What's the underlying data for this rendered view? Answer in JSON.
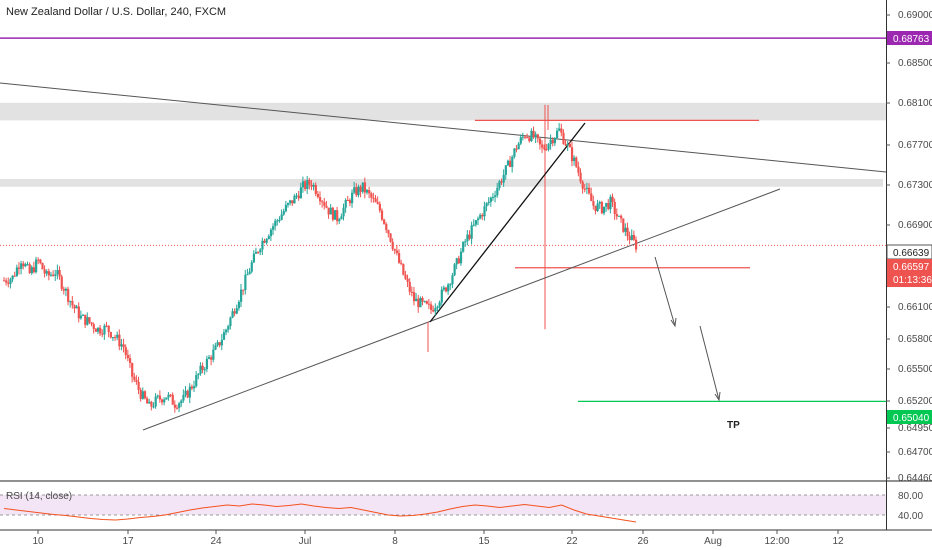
{
  "chart_data": {
    "type": "candlestick",
    "title": "New Zealand Dollar / U.S. Dollar, 240, FXCM",
    "y_axis": {
      "ticks": [
        "0.69000",
        "0.68500",
        "0.68100",
        "0.67700",
        "0.67300",
        "0.66900",
        "0.66100",
        "0.65800",
        "0.65500",
        "0.65200",
        "0.64950",
        "0.64700",
        "0.64460"
      ],
      "ylim": [
        0.6446,
        0.6905
      ]
    },
    "x_axis": {
      "ticks": [
        "10",
        "17",
        "24",
        "Jul",
        "8",
        "15",
        "22",
        "26",
        "Aug",
        "12:00",
        "12"
      ]
    },
    "price_labels": {
      "resistance_line": "0.68763",
      "last_price": "0.66639",
      "current_price": "0.66597",
      "countdown": "01:13:36",
      "tp_price": "0.65040"
    },
    "annotations": {
      "tp": "TP"
    },
    "rsi": {
      "label": "RSI (14, close)",
      "levels": [
        "80.00",
        "40.00"
      ]
    },
    "colors": {
      "up": "#26a69a",
      "down": "#ef5350",
      "resistance": "#9c27b0",
      "tp": "#00c853",
      "zones": "#dddddd",
      "rsi_line": "#f4511e",
      "rsi_band": "#f3e5f5"
    },
    "ohlc_path": [
      0.6628,
      0.6631,
      0.665,
      0.6635,
      0.6648,
      0.6632,
      0.6637,
      0.6621,
      0.6603,
      0.659,
      0.6585,
      0.6578,
      0.6579,
      0.657,
      0.656,
      0.653,
      0.6512,
      0.6498,
      0.6506,
      0.651,
      0.6502,
      0.6506,
      0.652,
      0.6535,
      0.6548,
      0.656,
      0.6578,
      0.66,
      0.6622,
      0.6645,
      0.6665,
      0.6678,
      0.669,
      0.6702,
      0.6712,
      0.6724,
      0.6728,
      0.6715,
      0.67,
      0.6692,
      0.6705,
      0.6718,
      0.6723,
      0.6712,
      0.67,
      0.6678,
      0.6652,
      0.6628,
      0.6608,
      0.6603,
      0.6598,
      0.661,
      0.6625,
      0.6645,
      0.6668,
      0.6683,
      0.6698,
      0.6712,
      0.6728,
      0.6745,
      0.6765,
      0.6778,
      0.6775,
      0.6762,
      0.6772,
      0.6782,
      0.6765,
      0.6745,
      0.6722,
      0.6705,
      0.6702,
      0.6708,
      0.669,
      0.6675,
      0.6664
    ],
    "rsi_values": [
      53,
      50,
      47,
      44,
      41,
      39,
      36,
      33,
      31,
      30,
      32,
      35,
      37,
      40,
      45,
      50,
      54,
      57,
      60,
      58,
      62,
      60,
      57,
      59,
      62,
      58,
      55,
      53,
      55,
      50,
      45,
      40,
      38,
      39,
      42,
      46,
      52,
      57,
      60,
      58,
      55,
      58,
      61,
      58,
      55,
      60,
      50,
      42,
      38,
      34,
      30,
      26
    ]
  }
}
